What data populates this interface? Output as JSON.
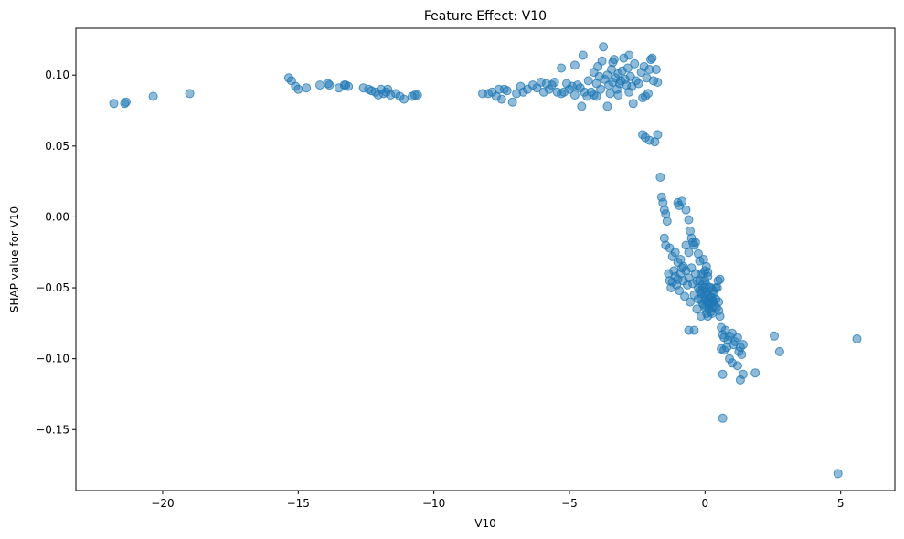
{
  "chart_data": {
    "type": "scatter",
    "title": "Feature Effect: V10",
    "xlabel": "V10",
    "ylabel": "SHAP value for V10",
    "xlim": [
      -23.2,
      7.0
    ],
    "ylim": [
      -0.193,
      0.133
    ],
    "x_ticks": [
      -20,
      -15,
      -10,
      -5,
      0,
      5
    ],
    "x_tick_labels": [
      "−20",
      "−15",
      "−10",
      "−5",
      "0",
      "5"
    ],
    "y_ticks": [
      -0.15,
      -0.1,
      -0.05,
      0.0,
      0.05,
      0.1
    ],
    "y_tick_labels": [
      "−0.15",
      "−0.10",
      "−0.05",
      "0.00",
      "0.05",
      "0.10"
    ],
    "grid": false,
    "marker_color": "#1f77b4",
    "marker_alpha": 0.5,
    "points": [
      [
        -21.8,
        0.08
      ],
      [
        -21.4,
        0.08
      ],
      [
        -21.35,
        0.081
      ],
      [
        -20.35,
        0.085
      ],
      [
        -19.0,
        0.087
      ],
      [
        -15.35,
        0.098
      ],
      [
        -15.25,
        0.096
      ],
      [
        -15.1,
        0.092
      ],
      [
        -15.0,
        0.09
      ],
      [
        -14.7,
        0.091
      ],
      [
        -14.2,
        0.093
      ],
      [
        -13.9,
        0.094
      ],
      [
        -13.85,
        0.093
      ],
      [
        -13.5,
        0.091
      ],
      [
        -13.3,
        0.093
      ],
      [
        -13.25,
        0.093
      ],
      [
        -13.15,
        0.092
      ],
      [
        -12.6,
        0.091
      ],
      [
        -12.4,
        0.09
      ],
      [
        -12.3,
        0.089
      ],
      [
        -12.15,
        0.088
      ],
      [
        -12.05,
        0.086
      ],
      [
        -11.95,
        0.09
      ],
      [
        -11.85,
        0.087
      ],
      [
        -11.75,
        0.088
      ],
      [
        -11.7,
        0.09
      ],
      [
        -11.6,
        0.086
      ],
      [
        -11.4,
        0.087
      ],
      [
        -11.25,
        0.085
      ],
      [
        -11.1,
        0.083
      ],
      [
        -10.8,
        0.085
      ],
      [
        -10.7,
        0.086
      ],
      [
        -10.6,
        0.086
      ],
      [
        -8.2,
        0.087
      ],
      [
        -8.0,
        0.087
      ],
      [
        -7.85,
        0.088
      ],
      [
        -7.7,
        0.085
      ],
      [
        -7.6,
        0.09
      ],
      [
        -7.5,
        0.083
      ],
      [
        -7.4,
        0.09
      ],
      [
        -7.3,
        0.089
      ],
      [
        -7.1,
        0.081
      ],
      [
        -6.95,
        0.087
      ],
      [
        -6.8,
        0.092
      ],
      [
        -6.7,
        0.088
      ],
      [
        -6.55,
        0.09
      ],
      [
        -6.35,
        0.093
      ],
      [
        -6.2,
        0.091
      ],
      [
        -6.05,
        0.095
      ],
      [
        -5.95,
        0.088
      ],
      [
        -5.85,
        0.094
      ],
      [
        -5.75,
        0.09
      ],
      [
        -5.65,
        0.093
      ],
      [
        -5.55,
        0.095
      ],
      [
        -5.45,
        0.088
      ],
      [
        -5.3,
        0.087
      ],
      [
        -5.2,
        0.088
      ],
      [
        -5.1,
        0.094
      ],
      [
        -5.0,
        0.09
      ],
      [
        -4.9,
        0.092
      ],
      [
        -4.8,
        0.086
      ],
      [
        -4.7,
        0.093
      ],
      [
        -4.6,
        0.091
      ],
      [
        -4.55,
        0.078
      ],
      [
        -4.45,
        0.088
      ],
      [
        -4.35,
        0.085
      ],
      [
        -4.3,
        0.096
      ],
      [
        -4.2,
        0.088
      ],
      [
        -4.1,
        0.102
      ],
      [
        -4.0,
        0.094
      ],
      [
        -3.95,
        0.106
      ],
      [
        -3.9,
        0.099
      ],
      [
        -3.85,
        0.09
      ],
      [
        -3.8,
        0.11
      ],
      [
        -3.75,
        0.12
      ],
      [
        -3.7,
        0.097
      ],
      [
        -3.6,
        0.1
      ],
      [
        -3.55,
        0.093
      ],
      [
        -3.5,
        0.087
      ],
      [
        -3.45,
        0.104
      ],
      [
        -3.4,
        0.095
      ],
      [
        -3.35,
        0.111
      ],
      [
        -3.3,
        0.098
      ],
      [
        -3.25,
        0.09
      ],
      [
        -3.2,
        0.101
      ],
      [
        -3.15,
        0.094
      ],
      [
        -3.1,
        0.096
      ],
      [
        -3.05,
        0.103
      ],
      [
        -3.0,
        0.112
      ],
      [
        -2.95,
        0.097
      ],
      [
        -2.9,
        0.093
      ],
      [
        -2.85,
        0.105
      ],
      [
        -2.8,
        0.114
      ],
      [
        -2.75,
        0.099
      ],
      [
        -2.7,
        0.092
      ],
      [
        -2.65,
        0.08
      ],
      [
        -2.6,
        0.108
      ],
      [
        -2.55,
        0.096
      ],
      [
        -2.45,
        0.094
      ],
      [
        -2.35,
        0.102
      ],
      [
        -2.3,
        0.084
      ],
      [
        -2.25,
        0.106
      ],
      [
        -2.2,
        0.085
      ],
      [
        -2.15,
        0.098
      ],
      [
        -2.1,
        0.087
      ],
      [
        -2.05,
        0.104
      ],
      [
        -2.0,
        0.111
      ],
      [
        -1.95,
        0.112
      ],
      [
        -1.9,
        0.096
      ],
      [
        -1.8,
        0.104
      ],
      [
        -1.75,
        0.095
      ],
      [
        -4.5,
        0.114
      ],
      [
        -4.1,
        0.086
      ],
      [
        -4.0,
        0.085
      ],
      [
        -3.6,
        0.078
      ],
      [
        -3.2,
        0.086
      ],
      [
        -2.8,
        0.088
      ],
      [
        -3.4,
        0.109
      ],
      [
        -4.8,
        0.107
      ],
      [
        -5.3,
        0.105
      ],
      [
        -2.3,
        0.058
      ],
      [
        -2.2,
        0.056
      ],
      [
        -2.05,
        0.054
      ],
      [
        -1.85,
        0.053
      ],
      [
        -1.75,
        0.058
      ],
      [
        -1.65,
        0.028
      ],
      [
        -1.6,
        0.014
      ],
      [
        -1.55,
        0.01
      ],
      [
        -1.5,
        0.005
      ],
      [
        -1.45,
        0.002
      ],
      [
        -1.4,
        -0.003
      ],
      [
        -1.0,
        0.01
      ],
      [
        -0.85,
        0.011
      ],
      [
        -0.95,
        0.008
      ],
      [
        -0.7,
        0.005
      ],
      [
        -0.6,
        -0.002
      ],
      [
        -0.55,
        -0.01
      ],
      [
        -0.5,
        -0.015
      ],
      [
        -0.45,
        -0.018
      ],
      [
        -0.4,
        -0.02
      ],
      [
        -1.5,
        -0.015
      ],
      [
        -1.45,
        -0.02
      ],
      [
        -1.3,
        -0.022
      ],
      [
        -1.2,
        -0.028
      ],
      [
        -1.1,
        -0.025
      ],
      [
        -1.0,
        -0.032
      ],
      [
        -0.9,
        -0.03
      ],
      [
        -0.8,
        -0.035
      ],
      [
        -0.7,
        -0.02
      ],
      [
        -0.6,
        -0.025
      ],
      [
        -0.35,
        -0.018
      ],
      [
        -0.25,
        -0.026
      ],
      [
        -0.2,
        -0.031
      ],
      [
        -0.15,
        -0.04
      ],
      [
        -1.35,
        -0.04
      ],
      [
        -1.3,
        -0.045
      ],
      [
        -1.25,
        -0.05
      ],
      [
        -1.2,
        -0.046
      ],
      [
        -1.15,
        -0.038
      ],
      [
        -1.1,
        -0.042
      ],
      [
        -1.05,
        -0.048
      ],
      [
        -1.0,
        -0.044
      ],
      [
        -0.95,
        -0.052
      ],
      [
        -0.9,
        -0.04
      ],
      [
        -0.85,
        -0.036
      ],
      [
        -0.8,
        -0.045
      ],
      [
        -0.75,
        -0.056
      ],
      [
        -0.7,
        -0.038
      ],
      [
        -0.65,
        -0.048
      ],
      [
        -0.6,
        -0.043
      ],
      [
        -0.55,
        -0.06
      ],
      [
        -0.5,
        -0.036
      ],
      [
        -0.45,
        -0.047
      ],
      [
        -0.4,
        -0.055
      ],
      [
        -0.35,
        -0.04
      ],
      [
        -0.3,
        -0.065
      ],
      [
        -0.25,
        -0.05
      ],
      [
        -0.2,
        -0.045
      ],
      [
        -0.15,
        -0.058
      ],
      [
        -0.1,
        -0.052
      ],
      [
        -0.05,
        -0.062
      ],
      [
        0.0,
        -0.055
      ],
      [
        0.05,
        -0.048
      ],
      [
        0.1,
        -0.06
      ],
      [
        0.15,
        -0.05
      ],
      [
        0.2,
        -0.067
      ],
      [
        0.25,
        -0.057
      ],
      [
        0.3,
        -0.052
      ],
      [
        0.35,
        -0.063
      ],
      [
        0.4,
        -0.058
      ],
      [
        0.45,
        -0.05
      ],
      [
        0.5,
        -0.066
      ],
      [
        0.55,
        -0.044
      ],
      [
        -0.3,
        -0.045
      ],
      [
        -0.2,
        -0.052
      ],
      [
        -0.1,
        -0.048
      ],
      [
        -0.05,
        -0.05
      ],
      [
        0.0,
        -0.045
      ],
      [
        0.02,
        -0.058
      ],
      [
        0.05,
        -0.053
      ],
      [
        0.08,
        -0.06
      ],
      [
        0.12,
        -0.055
      ],
      [
        0.15,
        -0.062
      ],
      [
        0.18,
        -0.057
      ],
      [
        0.22,
        -0.05
      ],
      [
        0.25,
        -0.064
      ],
      [
        0.28,
        -0.059
      ],
      [
        0.32,
        -0.054
      ],
      [
        -0.25,
        -0.058
      ],
      [
        -0.15,
        -0.054
      ],
      [
        -0.08,
        -0.061
      ],
      [
        0.0,
        -0.064
      ],
      [
        0.06,
        -0.068
      ],
      [
        0.1,
        -0.07
      ],
      [
        0.14,
        -0.065
      ],
      [
        0.2,
        -0.061
      ],
      [
        0.26,
        -0.068
      ],
      [
        0.3,
        -0.06
      ],
      [
        0.42,
        -0.064
      ],
      [
        0.5,
        -0.06
      ],
      [
        0.55,
        -0.07
      ],
      [
        0.48,
        -0.045
      ],
      [
        0.4,
        -0.05
      ],
      [
        -0.4,
        -0.08
      ],
      [
        -0.15,
        -0.07
      ],
      [
        -0.05,
        -0.04
      ],
      [
        0.0,
        -0.038
      ],
      [
        0.05,
        -0.035
      ],
      [
        0.1,
        -0.039
      ],
      [
        -0.6,
        -0.08
      ],
      [
        -0.05,
        -0.03
      ],
      [
        0.1,
        -0.042
      ],
      [
        0.6,
        -0.078
      ],
      [
        0.65,
        -0.083
      ],
      [
        0.7,
        -0.085
      ],
      [
        0.75,
        -0.08
      ],
      [
        0.8,
        -0.092
      ],
      [
        0.85,
        -0.087
      ],
      [
        0.9,
        -0.084
      ],
      [
        1.0,
        -0.082
      ],
      [
        1.05,
        -0.09
      ],
      [
        1.1,
        -0.088
      ],
      [
        1.2,
        -0.085
      ],
      [
        1.25,
        -0.095
      ],
      [
        1.3,
        -0.092
      ],
      [
        1.35,
        -0.097
      ],
      [
        1.4,
        -0.09
      ],
      [
        0.7,
        -0.094
      ],
      [
        0.6,
        -0.093
      ],
      [
        0.9,
        -0.1
      ],
      [
        1.0,
        -0.103
      ],
      [
        1.2,
        -0.105
      ],
      [
        1.3,
        -0.115
      ],
      [
        1.4,
        -0.111
      ],
      [
        0.65,
        -0.111
      ],
      [
        1.85,
        -0.11
      ],
      [
        2.55,
        -0.084
      ],
      [
        2.75,
        -0.095
      ],
      [
        0.65,
        -0.142
      ],
      [
        4.9,
        -0.181
      ],
      [
        5.6,
        -0.086
      ]
    ]
  }
}
